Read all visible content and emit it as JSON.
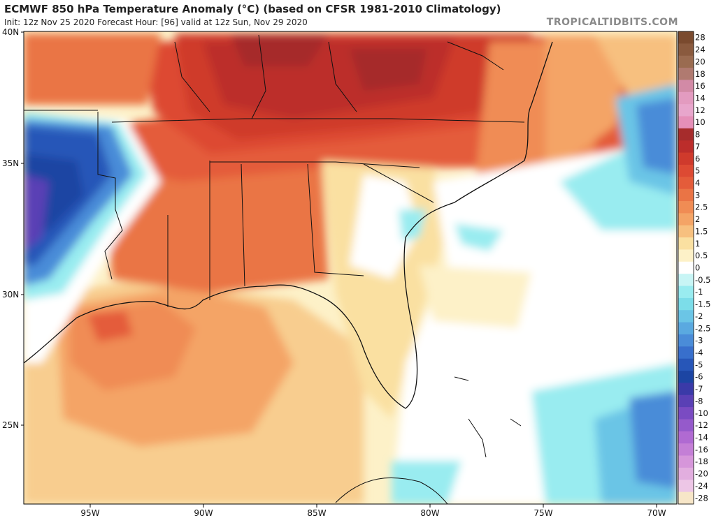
{
  "header": {
    "title": "ECMWF 850 hPa Temperature Anomaly (°C) (based on CFSR 1981-2010 Climatology)",
    "subtitle": "Init: 12z Nov 25 2020   Forecast Hour: [96]   valid at 12z Sun, Nov 29 2020",
    "brand": "TROPICALTIDBITS.COM"
  },
  "axes": {
    "lat_labels": [
      "40N",
      "35N",
      "30N",
      "25N"
    ],
    "lon_labels": [
      "95W",
      "90W",
      "85W",
      "80W",
      "75W",
      "70W"
    ]
  },
  "colorbar": {
    "entries": [
      {
        "label": "28",
        "color": "#7a4a2e"
      },
      {
        "label": "24",
        "color": "#8a5a3e"
      },
      {
        "label": "20",
        "color": "#9a6b50"
      },
      {
        "label": "18",
        "color": "#b07a70"
      },
      {
        "label": "16",
        "color": "#d28aa6"
      },
      {
        "label": "14",
        "color": "#e39bc0"
      },
      {
        "label": "12",
        "color": "#e8a6cc"
      },
      {
        "label": "10",
        "color": "#e58fb8"
      },
      {
        "label": "8",
        "color": "#a62c2c"
      },
      {
        "label": "7",
        "color": "#bc2d2b"
      },
      {
        "label": "6",
        "color": "#cf3a2c"
      },
      {
        "label": "5",
        "color": "#dd4a33"
      },
      {
        "label": "4",
        "color": "#e45c3a"
      },
      {
        "label": "3",
        "color": "#ea7445"
      },
      {
        "label": "2.5",
        "color": "#f08c54"
      },
      {
        "label": "2",
        "color": "#f4a466"
      },
      {
        "label": "1.5",
        "color": "#f7c07f"
      },
      {
        "label": "1",
        "color": "#fae0a1"
      },
      {
        "label": "0.5",
        "color": "#fdf1c8"
      },
      {
        "label": "0",
        "color": "#ffffff"
      },
      {
        "label": "-0.5",
        "color": "#c8f5f5"
      },
      {
        "label": "-1",
        "color": "#99ecf0"
      },
      {
        "label": "-1.5",
        "color": "#7cdde9"
      },
      {
        "label": "-2",
        "color": "#6bc5e6"
      },
      {
        "label": "-2.5",
        "color": "#5aa9e0"
      },
      {
        "label": "-3",
        "color": "#4a8cd8"
      },
      {
        "label": "-4",
        "color": "#386fcc"
      },
      {
        "label": "-5",
        "color": "#2756b8"
      },
      {
        "label": "-6",
        "color": "#1c45a3"
      },
      {
        "label": "-7",
        "color": "#3a3aa8"
      },
      {
        "label": "-8",
        "color": "#5a40b5"
      },
      {
        "label": "-10",
        "color": "#7a4bc2"
      },
      {
        "label": "-12",
        "color": "#955acb"
      },
      {
        "label": "-14",
        "color": "#b06ad2"
      },
      {
        "label": "-16",
        "color": "#c47fd6"
      },
      {
        "label": "-18",
        "color": "#d696da"
      },
      {
        "label": "-20",
        "color": "#e2aedf"
      },
      {
        "label": "-24",
        "color": "#edc6e6"
      },
      {
        "label": "-28",
        "color": "#f7e6c8"
      }
    ]
  }
}
